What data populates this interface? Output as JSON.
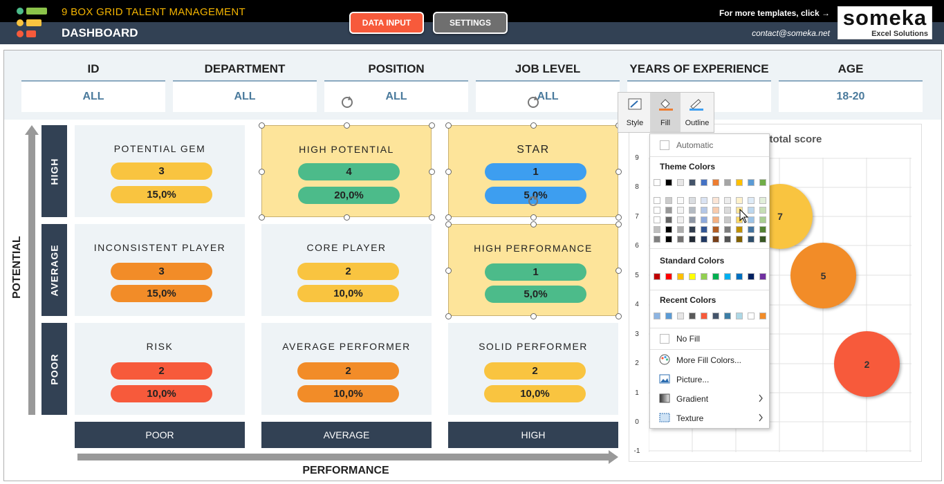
{
  "header": {
    "app_title": "9 BOX GRID TALENT MANAGEMENT",
    "page_title": "DASHBOARD",
    "data_input_label": "DATA INPUT",
    "settings_label": "SETTINGS",
    "more_templates": "For more templates, click →",
    "contact": "contact@someka.net",
    "brand": "someka",
    "brand_sub": "Excel Solutions"
  },
  "filters": [
    {
      "label": "ID",
      "value": "ALL"
    },
    {
      "label": "DEPARTMENT",
      "value": "ALL"
    },
    {
      "label": "POSITION",
      "value": "ALL"
    },
    {
      "label": "JOB LEVEL",
      "value": "ALL"
    },
    {
      "label": "YEARS OF EXPERIENCE",
      "value": ""
    },
    {
      "label": "AGE",
      "value": "18-20"
    }
  ],
  "axes": {
    "y_title": "POTENTIAL",
    "x_title": "PERFORMANCE",
    "rows": [
      "HIGH",
      "AVERAGE",
      "POOR"
    ],
    "cols": [
      "POOR",
      "AVERAGE",
      "HIGH"
    ]
  },
  "grid": [
    {
      "name": "POTENTIAL GEM",
      "count": "3",
      "pct": "15,0%",
      "color": "#F9C440"
    },
    {
      "name": "HIGH POTENTIAL",
      "count": "4",
      "pct": "20,0%",
      "color": "#4CBB8A"
    },
    {
      "name": "STAR",
      "count": "1",
      "pct": "5,0%",
      "color": "#3D9EF0"
    },
    {
      "name": "INCONSISTENT PLAYER",
      "count": "3",
      "pct": "15,0%",
      "color": "#F28C28"
    },
    {
      "name": "CORE PLAYER",
      "count": "2",
      "pct": "10,0%",
      "color": "#F9C440"
    },
    {
      "name": "HIGH PERFORMANCE",
      "count": "1",
      "pct": "5,0%",
      "color": "#4CBB8A"
    },
    {
      "name": "RISK",
      "count": "2",
      "pct": "10,0%",
      "color": "#F75A3B"
    },
    {
      "name": "AVERAGE PERFORMER",
      "count": "2",
      "pct": "10,0%",
      "color": "#F28C28"
    },
    {
      "name": "SOLID PERFORMER",
      "count": "2",
      "pct": "10,0%",
      "color": "#F9C440"
    }
  ],
  "chart": {
    "title": "y total score",
    "y_ticks": [
      "9",
      "8",
      "7",
      "6",
      "5",
      "4",
      "3",
      "2",
      "1",
      "0",
      "-1"
    ],
    "bubbles": [
      {
        "label": "7",
        "color": "#F9C440"
      },
      {
        "label": "5",
        "color": "#F28C28"
      },
      {
        "label": "2",
        "color": "#F75A3B"
      }
    ]
  },
  "ribbon": {
    "style": "Style",
    "fill": "Fill",
    "outline": "Outline"
  },
  "fill_menu": {
    "automatic": "Automatic",
    "theme_colors": "Theme Colors",
    "standard_colors": "Standard Colors",
    "recent_colors": "Recent Colors",
    "no_fill": "No Fill",
    "more_fill": "More Fill Colors...",
    "picture": "Picture...",
    "gradient": "Gradient",
    "texture": "Texture",
    "theme_row": [
      "#FFFFFF",
      "#000000",
      "#E7E6E6",
      "#44546A",
      "#4472C4",
      "#ED7D31",
      "#A5A5A5",
      "#FFC000",
      "#5B9BD5",
      "#70AD47"
    ],
    "standard_row": [
      "#C00000",
      "#FF0000",
      "#FFC000",
      "#FFFF00",
      "#92D050",
      "#00B050",
      "#00B0F0",
      "#0070C0",
      "#002060",
      "#7030A0"
    ],
    "recent_row": [
      "#8DB4E2",
      "#5B9BD5",
      "#E7E6E6",
      "#595959",
      "#F75A3B",
      "#44546A",
      "#3D7EA6",
      "#ADD8E6",
      "#FFFFFF",
      "#F28C28"
    ]
  }
}
